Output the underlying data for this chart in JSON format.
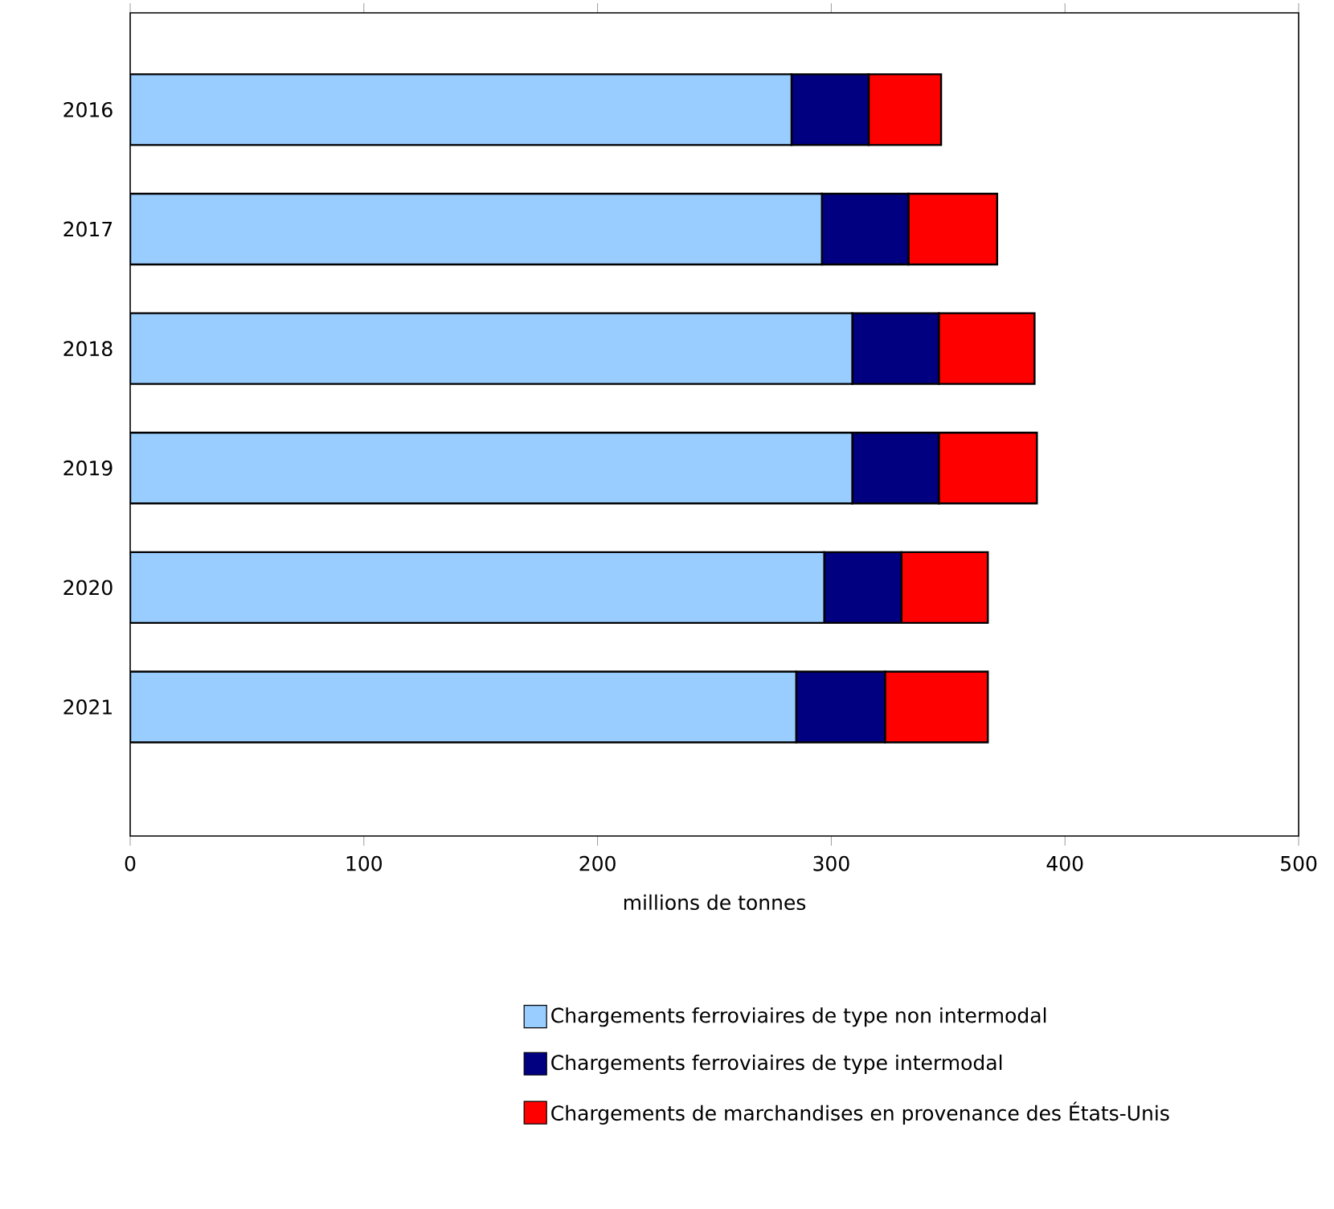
{
  "chart_data": {
    "type": "bar",
    "orientation": "horizontal",
    "stacked": true,
    "categories": [
      "2016",
      "2017",
      "2018",
      "2019",
      "2020",
      "2021"
    ],
    "series": [
      {
        "name": "Chargements ferroviaires de type non intermodal",
        "color": "#99ccff",
        "values": [
          283,
          296,
          309,
          309,
          297,
          285
        ]
      },
      {
        "name": "Chargements ferroviaires de type intermodal",
        "color": "#000080",
        "values": [
          33,
          37,
          37,
          37,
          33,
          38
        ]
      },
      {
        "name": "Chargements de marchandises en provenance des États-Unis",
        "color": "#ff0000",
        "values": [
          31,
          38,
          41,
          42,
          37,
          44
        ]
      }
    ],
    "xlabel": "millions de tonnes",
    "xlim": [
      0,
      500
    ],
    "xticks": [
      0,
      100,
      200,
      300,
      400,
      500
    ],
    "grid": false,
    "legend": "bottom"
  }
}
